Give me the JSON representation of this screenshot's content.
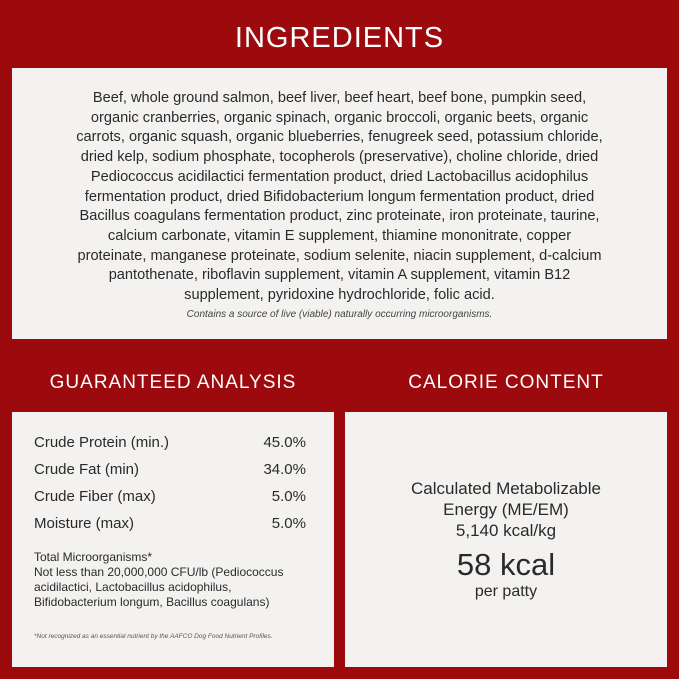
{
  "ingredients": {
    "title": "INGREDIENTS",
    "lines": [
      "Beef, whole ground salmon, beef liver, beef heart, beef bone, pumpkin seed,",
      "organic cranberries, organic spinach, organic broccoli, organic beets, organic",
      "carrots, organic squash, organic blueberries, fenugreek seed, potassium chloride,",
      "dried kelp, sodium phosphate, tocopherols (preservative), choline chloride, dried",
      "Pediococcus acidilactici fermentation product, dried Lactobacillus acidophilus",
      "fermentation product, dried Bifidobacterium longum fermentation product, dried",
      "Bacillus coagulans fermentation product, zinc proteinate, iron proteinate, taurine,",
      "calcium carbonate, vitamin E supplement, thiamine mononitrate, copper",
      "proteinate, manganese proteinate, sodium selenite, niacin supplement, d-calcium",
      "pantothenate, riboflavin supplement, vitamin A supplement, vitamin B12",
      "supplement, pyridoxine hydrochloride, folic acid."
    ],
    "note": "Contains a source of live (viable) naturally occurring microorganisms."
  },
  "analysis": {
    "title": "GUARANTEED ANALYSIS",
    "rows": [
      {
        "label": "Crude Protein (min.)",
        "value": "45.0%"
      },
      {
        "label": "Crude Fat (min)",
        "value": "34.0%"
      },
      {
        "label": "Crude Fiber (max)",
        "value": "5.0%"
      },
      {
        "label": "Moisture (max)",
        "value": "5.0%"
      }
    ],
    "micro_lines": [
      "Total Microorganisms*",
      "Not less than 20,000,000 CFU/lb (Pediococcus",
      "acidilactici, Lactobacillus acidophilus,",
      "Bifidobacterium longum, Bacillus coagulans)"
    ],
    "footnote": "*Not recognized as an essential nutrient by the AAFCO Dog Food Nutrient Profiles."
  },
  "calorie": {
    "title": "CALORIE CONTENT",
    "line1": "Calculated Metabolizable",
    "line2": "Energy (ME/EM)",
    "line3": "5,140 kcal/kg",
    "big": "58 kcal",
    "per": "per patty"
  },
  "colors": {
    "background": "#9d0a0e",
    "panel": "#f3f2f0"
  }
}
